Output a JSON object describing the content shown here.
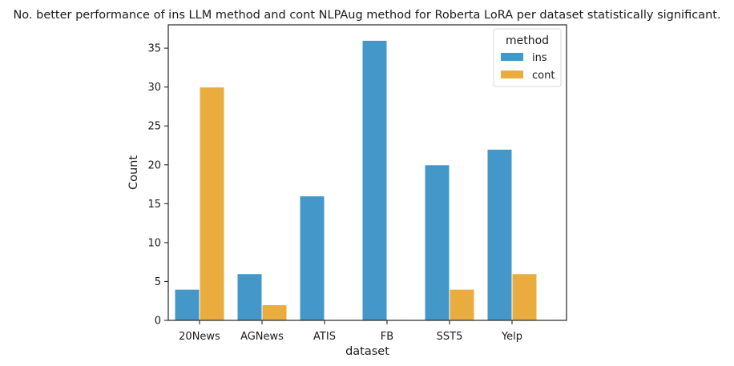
{
  "chart_data": {
    "type": "bar",
    "title": "No. better performance of ins LLM method and cont NLPAug method for Roberta LoRA per dataset statistically significant.",
    "xlabel": "dataset",
    "ylabel": "Count",
    "categories": [
      "20News",
      "AGNews",
      "ATIS",
      "FB",
      "SST5",
      "Yelp"
    ],
    "series": [
      {
        "name": "ins",
        "values": [
          4,
          6,
          16,
          36,
          20,
          22
        ],
        "color": "#4398c9"
      },
      {
        "name": "cont",
        "values": [
          30,
          2,
          0,
          0,
          4,
          6
        ],
        "color": "#e8ad3e"
      }
    ],
    "ylim": [
      0,
      38
    ],
    "yticks": [
      0,
      5,
      10,
      15,
      20,
      25,
      30,
      35
    ],
    "grid": false,
    "legend": {
      "title": "method",
      "placement": "top-right"
    }
  }
}
